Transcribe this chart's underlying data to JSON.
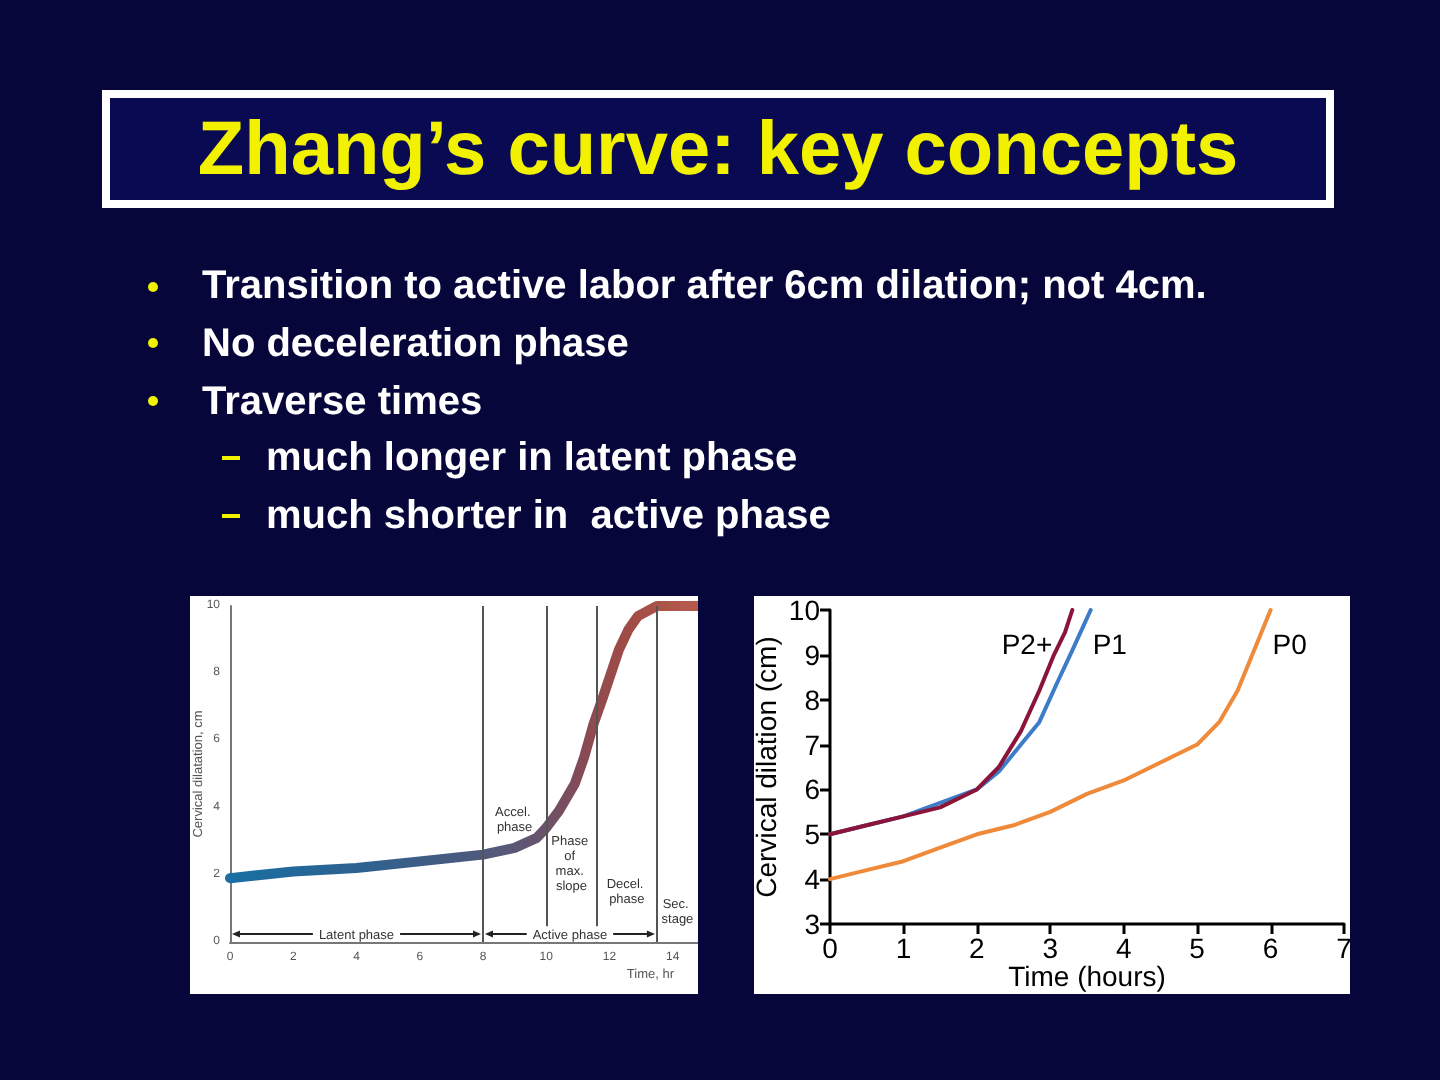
{
  "chart_data": [
    {
      "type": "other",
      "title": "Zhang’s curve: key concepts",
      "annotations": [
        "Transition to active labor after 6cm dilation; not 4cm.",
        "No deceleration phase",
        "Traverse times",
        "much longer in latent phase",
        "much shorter in  active phase"
      ]
    },
    {
      "type": "line",
      "xlabel": "Time, hr",
      "ylabel": "Cervical dilatation, cm",
      "x": [
        0,
        2,
        4,
        6,
        8,
        9,
        9.7,
        10,
        10.4,
        10.9,
        11.2,
        11.5,
        11.8,
        12.3,
        12.6,
        12.9,
        13.5,
        14.8
      ],
      "series": [
        {
          "values": [
            1.9,
            2.1,
            2.2,
            2.4,
            2.6,
            2.8,
            3.1,
            3.4,
            3.9,
            4.7,
            5.5,
            6.5,
            7.3,
            8.7,
            9.3,
            9.7,
            10,
            10
          ],
          "colors": [
            "#1a6fa3",
            "#22689a",
            "#2d6290",
            "#3d5d85",
            "#4f5a7c",
            "#5b5775",
            "#65546e",
            "#6c5268",
            "#754f62",
            "#804c5a",
            "#874a54",
            "#8e4a50",
            "#944a4c",
            "#9c4b48",
            "#a04c46",
            "#a44e46",
            "#a85448",
            "#b85a4e"
          ]
        }
      ],
      "xlim": [
        0,
        14.8
      ],
      "xticks": [
        0,
        2,
        4,
        6,
        8,
        10,
        12,
        14
      ],
      "ylim": [
        0,
        10
      ],
      "yticks": [
        0,
        2,
        4,
        6,
        8,
        10
      ],
      "ref_lines": [
        {
          "axis": "x",
          "value": 8,
          "color": "#555555"
        },
        {
          "axis": "x",
          "value": 10,
          "color": "#555555"
        },
        {
          "axis": "x",
          "value": 11.6,
          "color": "#555555"
        },
        {
          "axis": "x",
          "value": 13.5,
          "color": "#555555"
        }
      ],
      "annotations": [
        "Latent phase",
        "Active phase",
        "Accel. phase",
        "Phase of max. slope",
        "Decel. phase",
        "Sec. stage"
      ]
    },
    {
      "type": "line",
      "xlabel": "Time (hours)",
      "ylabel": "Cervical dilation (cm)",
      "series": [
        {
          "name": "P0",
          "color": "#ef8a3a",
          "x": [
            0,
            0.5,
            1,
            1.5,
            2,
            2.5,
            3,
            3.5,
            4,
            4.5,
            5,
            5.3,
            5.55,
            5.8,
            6
          ],
          "values": [
            4.0,
            4.2,
            4.4,
            4.7,
            5.0,
            5.2,
            5.5,
            5.9,
            6.2,
            6.6,
            7.0,
            7.5,
            8.2,
            9.2,
            10.0
          ]
        },
        {
          "name": "P1",
          "color": "#3d7cc9",
          "x": [
            0,
            0.5,
            1,
            1.5,
            2,
            2.3,
            2.6,
            2.85,
            3.1,
            3.3,
            3.55
          ],
          "values": [
            5.0,
            5.2,
            5.4,
            5.7,
            6.0,
            6.4,
            7.0,
            7.5,
            8.4,
            9.1,
            10.0
          ]
        },
        {
          "name": "P2+",
          "color": "#8b1538",
          "x": [
            0,
            0.5,
            1,
            1.5,
            2,
            2.3,
            2.6,
            2.85,
            3.05,
            3.2,
            3.3
          ],
          "values": [
            5.0,
            5.2,
            5.4,
            5.6,
            6.0,
            6.5,
            7.3,
            8.2,
            9.0,
            9.5,
            10.0
          ]
        }
      ],
      "xlim": [
        0,
        7
      ],
      "xticks": [
        0,
        1,
        2,
        3,
        4,
        5,
        6,
        7
      ],
      "ylim": [
        3,
        10
      ],
      "yticks": [
        3,
        4,
        5,
        6,
        7,
        8,
        9,
        10
      ]
    }
  ]
}
